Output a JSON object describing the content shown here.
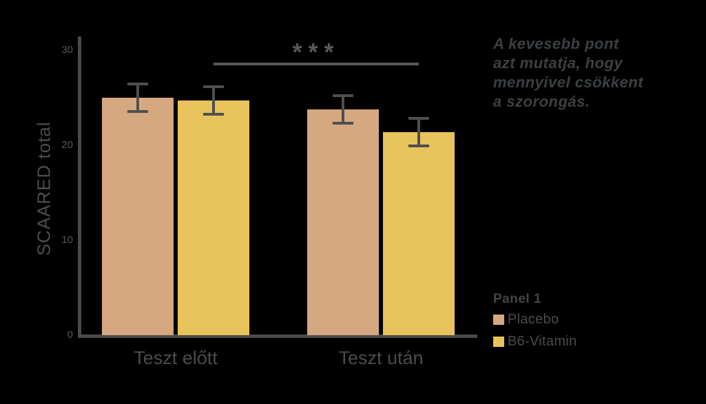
{
  "background_color": "#000000",
  "chart_data": {
    "type": "bar",
    "categories": [
      "Teszt előtt",
      "Teszt után"
    ],
    "series": [
      {
        "name": "Placebo",
        "color": "#d6a87f",
        "values": [
          25.0,
          23.8
        ],
        "errors": [
          1.4,
          1.4
        ]
      },
      {
        "name": "B6-Vitamin",
        "color": "#e8c35b",
        "values": [
          24.7,
          21.4
        ],
        "errors": [
          1.4,
          1.4
        ]
      }
    ],
    "title": "",
    "xlabel": "",
    "ylabel": "SCAARED total",
    "ylim": [
      0,
      30
    ],
    "yticks": [
      30,
      20,
      10,
      0
    ],
    "grid": false,
    "error_bars": true,
    "legend": {
      "title": "Panel 1",
      "position": "right-bottom",
      "entries": [
        "Placebo",
        "B6-Vitamin"
      ]
    },
    "significance": {
      "label": "***",
      "series": "B6-Vitamin",
      "from_category": "Teszt előtt",
      "to_category": "Teszt után"
    }
  },
  "annotation": {
    "text": "A kevesebb pont\nazt mutatja, hogy\nmennyivel csökkent\na szorongás."
  },
  "colors": {
    "axis": "#4a4a4a",
    "error_bar": "#4f4f4f",
    "tick_text": "#55585a",
    "category_text": "#4a4c4e",
    "ylabel_text": "#4c4f52",
    "annotation_text": "#3d4043",
    "legend_title_text": "#414447",
    "legend_label_text": "#4a4b4d",
    "significance": "#57585a"
  }
}
